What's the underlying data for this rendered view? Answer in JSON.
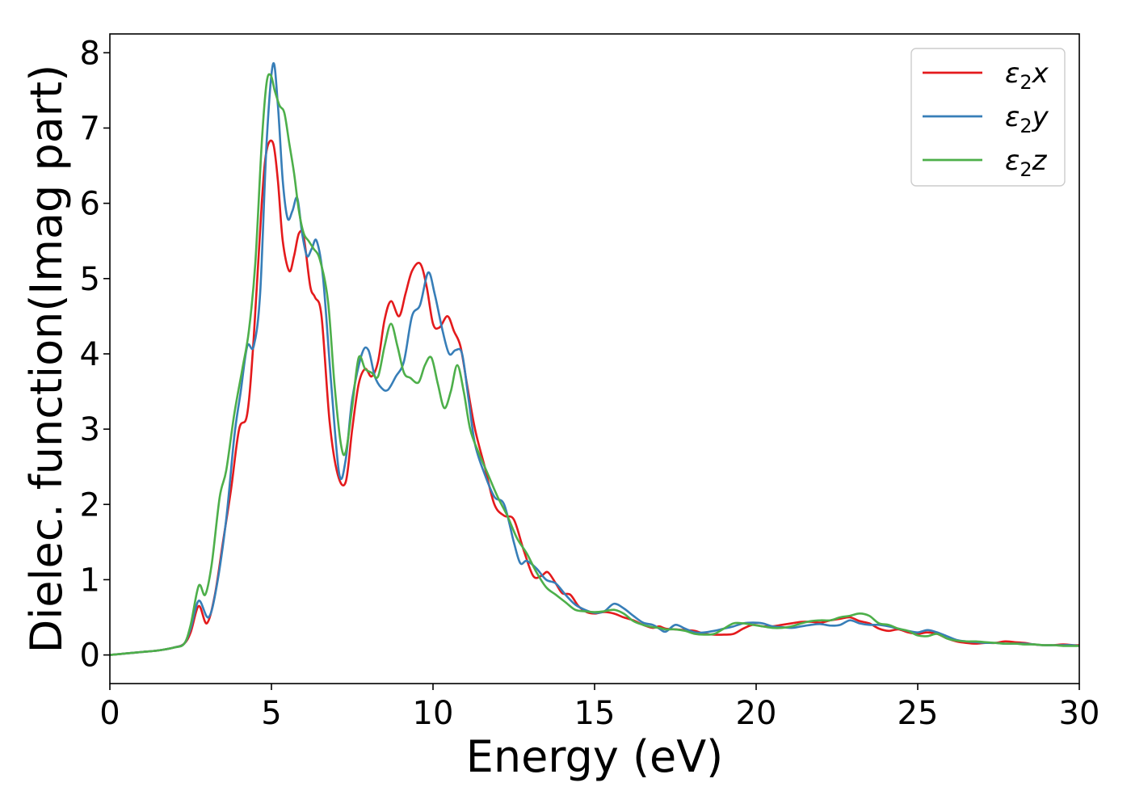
{
  "chart_data": {
    "type": "line",
    "xlabel": "Energy (eV)",
    "ylabel": "Dielec. function(Imag part)",
    "xlim": [
      0,
      30
    ],
    "ylim": [
      -0.38,
      8.25
    ],
    "xticks": [
      0,
      5,
      10,
      15,
      20,
      25,
      30
    ],
    "yticks": [
      0,
      1,
      2,
      3,
      4,
      5,
      6,
      7,
      8
    ],
    "grid": false,
    "legend_position": "top-right",
    "series": [
      {
        "name": "ε2x",
        "legend_base": "ε",
        "legend_sub": "2",
        "legend_tail": "x",
        "color": "#e41a1c",
        "x": [
          0,
          0.5,
          1,
          1.5,
          2,
          2.3,
          2.5,
          2.75,
          3.0,
          3.25,
          3.5,
          3.75,
          4.0,
          4.25,
          4.45,
          4.7,
          4.85,
          5.05,
          5.2,
          5.35,
          5.55,
          5.7,
          5.85,
          6.0,
          6.2,
          6.35,
          6.55,
          6.8,
          7.05,
          7.3,
          7.5,
          7.7,
          7.9,
          8.1,
          8.3,
          8.5,
          8.7,
          8.95,
          9.15,
          9.35,
          9.6,
          9.8,
          10.0,
          10.2,
          10.45,
          10.65,
          10.85,
          11.05,
          11.3,
          11.6,
          11.9,
          12.2,
          12.5,
          12.8,
          13.1,
          13.35,
          13.55,
          13.8,
          14.0,
          14.25,
          14.5,
          14.75,
          15.0,
          15.3,
          15.6,
          15.9,
          16.2,
          16.5,
          16.8,
          17.0,
          17.2,
          17.5,
          17.8,
          18.1,
          18.4,
          18.7,
          19.0,
          19.3,
          19.6,
          19.9,
          20.2,
          20.5,
          20.8,
          21.1,
          21.4,
          21.7,
          22.0,
          22.3,
          22.6,
          22.9,
          23.2,
          23.5,
          23.8,
          24.1,
          24.4,
          24.7,
          25.0,
          25.3,
          25.6,
          25.9,
          26.2,
          26.5,
          26.8,
          27.1,
          27.4,
          27.7,
          28.0,
          28.3,
          28.6,
          28.9,
          29.2,
          29.5,
          29.8,
          30.0
        ],
        "values": [
          0.0,
          0.02,
          0.04,
          0.06,
          0.1,
          0.15,
          0.3,
          0.65,
          0.42,
          0.8,
          1.5,
          2.2,
          3.0,
          3.2,
          4.2,
          6.0,
          6.7,
          6.8,
          6.3,
          5.5,
          5.1,
          5.3,
          5.6,
          5.55,
          4.9,
          4.75,
          4.5,
          3.1,
          2.4,
          2.3,
          3.0,
          3.6,
          3.8,
          3.7,
          3.9,
          4.45,
          4.7,
          4.5,
          4.8,
          5.1,
          5.2,
          4.9,
          4.4,
          4.35,
          4.5,
          4.3,
          4.1,
          3.6,
          3.0,
          2.5,
          2.0,
          1.85,
          1.8,
          1.4,
          1.05,
          1.05,
          1.1,
          0.95,
          0.82,
          0.8,
          0.65,
          0.57,
          0.55,
          0.57,
          0.55,
          0.5,
          0.46,
          0.4,
          0.36,
          0.38,
          0.35,
          0.34,
          0.33,
          0.32,
          0.28,
          0.27,
          0.27,
          0.28,
          0.35,
          0.4,
          0.38,
          0.38,
          0.4,
          0.42,
          0.44,
          0.44,
          0.43,
          0.46,
          0.48,
          0.5,
          0.45,
          0.42,
          0.35,
          0.32,
          0.34,
          0.3,
          0.28,
          0.3,
          0.28,
          0.22,
          0.18,
          0.16,
          0.15,
          0.16,
          0.16,
          0.18,
          0.17,
          0.16,
          0.14,
          0.13,
          0.13,
          0.14,
          0.13,
          0.13
        ]
      },
      {
        "name": "ε2y",
        "legend_base": "ε",
        "legend_sub": "2",
        "legend_tail": "y",
        "color": "#377eb8",
        "x": [
          0,
          0.5,
          1,
          1.5,
          2,
          2.3,
          2.5,
          2.75,
          3.05,
          3.3,
          3.6,
          3.85,
          4.05,
          4.25,
          4.45,
          4.65,
          4.85,
          5.05,
          5.2,
          5.35,
          5.5,
          5.65,
          5.8,
          5.95,
          6.1,
          6.25,
          6.4,
          6.6,
          6.85,
          7.1,
          7.3,
          7.5,
          7.8,
          8.0,
          8.2,
          8.4,
          8.6,
          8.85,
          9.1,
          9.35,
          9.6,
          9.85,
          10.05,
          10.3,
          10.5,
          10.7,
          10.9,
          11.1,
          11.3,
          11.6,
          11.9,
          12.2,
          12.5,
          12.7,
          12.9,
          13.2,
          13.5,
          13.8,
          14.1,
          14.4,
          14.7,
          15.0,
          15.3,
          15.6,
          15.9,
          16.2,
          16.5,
          16.8,
          17.0,
          17.2,
          17.5,
          17.8,
          18.1,
          18.4,
          18.7,
          19.0,
          19.3,
          19.6,
          19.9,
          20.2,
          20.5,
          20.8,
          21.1,
          21.4,
          21.7,
          22.0,
          22.3,
          22.6,
          22.9,
          23.2,
          23.5,
          23.8,
          24.1,
          24.4,
          24.7,
          25.0,
          25.3,
          25.6,
          25.9,
          26.2,
          26.5,
          26.8,
          27.1,
          27.4,
          27.7,
          28.0,
          28.3,
          28.6,
          28.9,
          29.2,
          29.5,
          29.8,
          30.0
        ],
        "values": [
          0.0,
          0.02,
          0.04,
          0.06,
          0.1,
          0.15,
          0.35,
          0.72,
          0.5,
          0.9,
          1.8,
          2.9,
          3.5,
          4.1,
          4.1,
          4.8,
          6.8,
          7.85,
          7.3,
          6.3,
          5.8,
          5.9,
          6.07,
          5.6,
          5.3,
          5.4,
          5.5,
          5.0,
          3.6,
          2.4,
          2.6,
          3.4,
          4.0,
          4.05,
          3.7,
          3.55,
          3.52,
          3.7,
          3.9,
          4.5,
          4.65,
          5.08,
          4.8,
          4.3,
          4.0,
          4.05,
          4.0,
          3.4,
          2.8,
          2.4,
          2.1,
          2.0,
          1.5,
          1.22,
          1.25,
          1.15,
          1.0,
          0.95,
          0.8,
          0.67,
          0.6,
          0.56,
          0.58,
          0.68,
          0.62,
          0.52,
          0.43,
          0.4,
          0.35,
          0.31,
          0.4,
          0.35,
          0.3,
          0.3,
          0.32,
          0.35,
          0.38,
          0.42,
          0.43,
          0.42,
          0.38,
          0.37,
          0.36,
          0.38,
          0.4,
          0.41,
          0.39,
          0.4,
          0.46,
          0.42,
          0.4,
          0.4,
          0.38,
          0.35,
          0.32,
          0.3,
          0.33,
          0.3,
          0.25,
          0.2,
          0.18,
          0.17,
          0.16,
          0.16,
          0.15,
          0.15,
          0.15,
          0.14,
          0.13,
          0.13,
          0.13,
          0.13,
          0.12
        ]
      },
      {
        "name": "ε2z",
        "legend_base": "ε",
        "legend_sub": "2",
        "legend_tail": "z",
        "color": "#4daf4a",
        "x": [
          0,
          0.5,
          1,
          1.5,
          2,
          2.3,
          2.5,
          2.75,
          2.95,
          3.15,
          3.4,
          3.6,
          3.85,
          4.1,
          4.3,
          4.5,
          4.7,
          4.85,
          4.98,
          5.1,
          5.25,
          5.4,
          5.55,
          5.7,
          5.85,
          6.0,
          6.15,
          6.3,
          6.5,
          6.75,
          6.95,
          7.15,
          7.3,
          7.5,
          7.7,
          7.9,
          8.1,
          8.3,
          8.5,
          8.7,
          8.9,
          9.1,
          9.3,
          9.55,
          9.75,
          9.95,
          10.15,
          10.35,
          10.55,
          10.75,
          10.95,
          11.15,
          11.4,
          11.7,
          12.0,
          12.3,
          12.6,
          12.9,
          13.2,
          13.5,
          13.8,
          14.1,
          14.4,
          14.7,
          15.0,
          15.3,
          15.6,
          15.9,
          16.2,
          16.5,
          16.8,
          17.0,
          17.2,
          17.5,
          17.8,
          18.1,
          18.4,
          18.7,
          19.0,
          19.3,
          19.6,
          19.9,
          20.2,
          20.5,
          20.8,
          21.1,
          21.4,
          21.7,
          22.0,
          22.3,
          22.6,
          22.9,
          23.2,
          23.5,
          23.8,
          24.1,
          24.4,
          24.7,
          25.0,
          25.3,
          25.6,
          25.9,
          26.2,
          26.5,
          26.8,
          27.1,
          27.4,
          27.7,
          28.0,
          28.3,
          28.6,
          28.9,
          29.2,
          29.5,
          29.8,
          30.0
        ],
        "values": [
          0.0,
          0.02,
          0.04,
          0.06,
          0.1,
          0.15,
          0.4,
          0.92,
          0.8,
          1.2,
          2.1,
          2.45,
          3.2,
          3.8,
          4.3,
          5.2,
          6.8,
          7.6,
          7.7,
          7.5,
          7.3,
          7.2,
          6.8,
          6.4,
          5.9,
          5.6,
          5.5,
          5.4,
          5.25,
          4.7,
          3.6,
          2.8,
          2.7,
          3.3,
          3.95,
          3.8,
          3.75,
          3.7,
          4.1,
          4.4,
          4.1,
          3.75,
          3.68,
          3.62,
          3.85,
          3.95,
          3.6,
          3.28,
          3.5,
          3.85,
          3.5,
          3.0,
          2.7,
          2.4,
          2.1,
          1.85,
          1.55,
          1.35,
          1.1,
          0.9,
          0.8,
          0.7,
          0.6,
          0.58,
          0.57,
          0.58,
          0.6,
          0.55,
          0.45,
          0.4,
          0.37,
          0.36,
          0.34,
          0.34,
          0.32,
          0.28,
          0.27,
          0.28,
          0.35,
          0.42,
          0.42,
          0.4,
          0.38,
          0.36,
          0.36,
          0.38,
          0.42,
          0.45,
          0.46,
          0.46,
          0.5,
          0.52,
          0.55,
          0.52,
          0.42,
          0.4,
          0.35,
          0.32,
          0.26,
          0.25,
          0.28,
          0.22,
          0.19,
          0.18,
          0.18,
          0.17,
          0.16,
          0.15,
          0.15,
          0.14,
          0.14,
          0.13,
          0.13,
          0.12,
          0.12,
          0.12
        ]
      }
    ]
  }
}
